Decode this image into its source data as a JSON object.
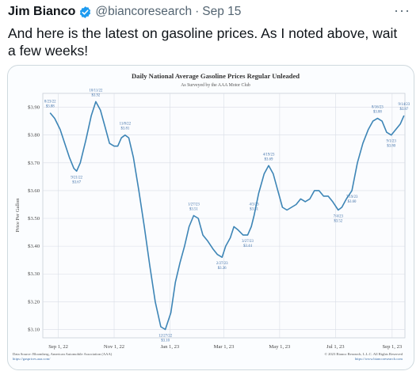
{
  "tweet": {
    "author_name": "Jim Bianco",
    "handle": "@biancoresearch",
    "separator": "·",
    "date": "Sep 15",
    "more_label": "···",
    "text": "And here is the latest on gasoline prices. As I noted above, wait a few weeks!"
  },
  "icons": {
    "verified": "verified-badge-icon",
    "more": "more-options-icon"
  },
  "colors": {
    "line": "#3d85b6",
    "verified": "#1d9bf0",
    "grid": "#d9dde6",
    "title": "#333333"
  },
  "chart_data": {
    "type": "line",
    "title": "Daily National Average Gasoline Prices Regular Unleaded",
    "subtitle": "As Surveyed by the AAA Motor Club",
    "ylabel": "Price Per Gallon",
    "ylim": [
      3.07,
      3.95
    ],
    "xlim": [
      "2022-08-15",
      "2023-09-15"
    ],
    "y_ticks": [
      "$3.90",
      "$3.80",
      "$3.70",
      "$3.60",
      "$3.50",
      "$3.40",
      "$3.30",
      "$3.20",
      "$3.10"
    ],
    "x_ticks": [
      {
        "label": "Sep 1, 22",
        "date": "2022-09-01"
      },
      {
        "label": "Nov 1, 22",
        "date": "2022-11-01"
      },
      {
        "label": "Jan 1, 23",
        "date": "2023-01-01"
      },
      {
        "label": "Mar 1, 23",
        "date": "2023-03-01"
      },
      {
        "label": "May 1, 23",
        "date": "2023-05-01"
      },
      {
        "label": "Jul 1, 23",
        "date": "2023-07-01"
      },
      {
        "label": "Sep 1, 23",
        "date": "2023-09-01"
      }
    ],
    "series": [
      {
        "values": [
          [
            "2022-08-23",
            3.88
          ],
          [
            "2022-08-28",
            3.86
          ],
          [
            "2022-09-03",
            3.82
          ],
          [
            "2022-09-08",
            3.77
          ],
          [
            "2022-09-13",
            3.72
          ],
          [
            "2022-09-18",
            3.68
          ],
          [
            "2022-09-21",
            3.67
          ],
          [
            "2022-09-25",
            3.7
          ],
          [
            "2022-10-01",
            3.78
          ],
          [
            "2022-10-07",
            3.87
          ],
          [
            "2022-10-12",
            3.92
          ],
          [
            "2022-10-17",
            3.89
          ],
          [
            "2022-10-22",
            3.83
          ],
          [
            "2022-10-27",
            3.77
          ],
          [
            "2022-11-01",
            3.76
          ],
          [
            "2022-11-05",
            3.76
          ],
          [
            "2022-11-09",
            3.79
          ],
          [
            "2022-11-13",
            3.8
          ],
          [
            "2022-11-17",
            3.79
          ],
          [
            "2022-11-22",
            3.72
          ],
          [
            "2022-11-28",
            3.6
          ],
          [
            "2022-12-04",
            3.47
          ],
          [
            "2022-12-10",
            3.33
          ],
          [
            "2022-12-16",
            3.2
          ],
          [
            "2022-12-22",
            3.11
          ],
          [
            "2022-12-27",
            3.1
          ],
          [
            "2023-01-02",
            3.16
          ],
          [
            "2023-01-07",
            3.27
          ],
          [
            "2023-01-12",
            3.34
          ],
          [
            "2023-01-17",
            3.4
          ],
          [
            "2023-01-22",
            3.47
          ],
          [
            "2023-01-27",
            3.51
          ],
          [
            "2023-02-01",
            3.5
          ],
          [
            "2023-02-06",
            3.44
          ],
          [
            "2023-02-11",
            3.42
          ],
          [
            "2023-02-17",
            3.39
          ],
          [
            "2023-02-22",
            3.37
          ],
          [
            "2023-02-27",
            3.36
          ],
          [
            "2023-03-03",
            3.4
          ],
          [
            "2023-03-08",
            3.43
          ],
          [
            "2023-03-12",
            3.47
          ],
          [
            "2023-03-16",
            3.46
          ],
          [
            "2023-03-22",
            3.44
          ],
          [
            "2023-03-27",
            3.44
          ],
          [
            "2023-03-31",
            3.47
          ],
          [
            "2023-04-03",
            3.51
          ],
          [
            "2023-04-08",
            3.59
          ],
          [
            "2023-04-14",
            3.66
          ],
          [
            "2023-04-19",
            3.69
          ],
          [
            "2023-04-24",
            3.66
          ],
          [
            "2023-04-29",
            3.6
          ],
          [
            "2023-05-04",
            3.54
          ],
          [
            "2023-05-09",
            3.53
          ],
          [
            "2023-05-14",
            3.54
          ],
          [
            "2023-05-19",
            3.55
          ],
          [
            "2023-05-24",
            3.57
          ],
          [
            "2023-05-29",
            3.56
          ],
          [
            "2023-06-03",
            3.57
          ],
          [
            "2023-06-08",
            3.6
          ],
          [
            "2023-06-13",
            3.6
          ],
          [
            "2023-06-18",
            3.58
          ],
          [
            "2023-06-23",
            3.58
          ],
          [
            "2023-06-28",
            3.56
          ],
          [
            "2023-07-04",
            3.53
          ],
          [
            "2023-07-08",
            3.54
          ],
          [
            "2023-07-13",
            3.57
          ],
          [
            "2023-07-19",
            3.6
          ],
          [
            "2023-07-25",
            3.7
          ],
          [
            "2023-07-31",
            3.77
          ],
          [
            "2023-08-06",
            3.82
          ],
          [
            "2023-08-11",
            3.85
          ],
          [
            "2023-08-16",
            3.86
          ],
          [
            "2023-08-21",
            3.85
          ],
          [
            "2023-08-26",
            3.81
          ],
          [
            "2023-08-31",
            3.8
          ],
          [
            "2023-09-05",
            3.82
          ],
          [
            "2023-09-10",
            3.84
          ],
          [
            "2023-09-14",
            3.87
          ]
        ]
      }
    ],
    "annotations": [
      {
        "date": "2022-08-23",
        "value": 3.88,
        "text": "8/23/22",
        "price": "$3.88",
        "pos": "above"
      },
      {
        "date": "2022-09-21",
        "value": 3.67,
        "text": "9/21/22",
        "price": "$3.67",
        "pos": "below"
      },
      {
        "date": "2022-10-12",
        "value": 3.92,
        "text": "10/11/22",
        "price": "$3.92",
        "pos": "above"
      },
      {
        "date": "2022-11-13",
        "value": 3.8,
        "text": "11/8/22",
        "price": "$3.81",
        "pos": "above"
      },
      {
        "date": "2022-12-27",
        "value": 3.1,
        "text": "12/27/22",
        "price": "$3.10",
        "pos": "below"
      },
      {
        "date": "2023-01-27",
        "value": 3.51,
        "text": "1/27/23",
        "price": "$3.51",
        "pos": "above"
      },
      {
        "date": "2023-02-27",
        "value": 3.36,
        "text": "2/27/23",
        "price": "$3.36",
        "pos": "below"
      },
      {
        "date": "2023-03-27",
        "value": 3.44,
        "text": "3/27/23",
        "price": "$3.44",
        "pos": "below"
      },
      {
        "date": "2023-04-03",
        "value": 3.51,
        "text": "4/3/23",
        "price": "$3.51",
        "pos": "above"
      },
      {
        "date": "2023-04-19",
        "value": 3.69,
        "text": "4/19/23",
        "price": "$3.69",
        "pos": "above"
      },
      {
        "date": "2023-07-04",
        "value": 3.53,
        "text": "7/4/23",
        "price": "$3.52",
        "pos": "below"
      },
      {
        "date": "2023-07-19",
        "value": 3.6,
        "text": "7/19/23",
        "price": "$3.60",
        "pos": "below"
      },
      {
        "date": "2023-08-16",
        "value": 3.86,
        "text": "8/16/23",
        "price": "$3.88",
        "pos": "above"
      },
      {
        "date": "2023-08-31",
        "value": 3.8,
        "text": "9/1/23",
        "price": "$3.80",
        "pos": "below"
      },
      {
        "date": "2023-09-14",
        "value": 3.87,
        "text": "9/14/23",
        "price": "$3.87",
        "pos": "above"
      }
    ],
    "source_lines": [
      "Data Source: Bloomberg, American Automobile Association (AAA)",
      "https://gasprices.aaa.com/"
    ],
    "copyright_lines": [
      "© 2023 Bianco Research, L.L.C. All Rights Reserved",
      "https://www.biancoresearch.com"
    ]
  }
}
